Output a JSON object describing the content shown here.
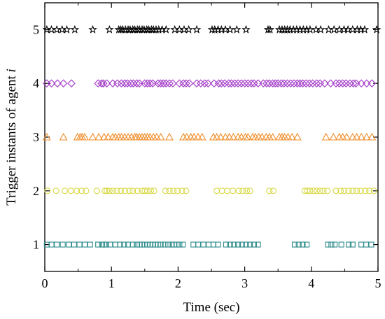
{
  "chart_data": {
    "type": "scatter",
    "title": "",
    "xlabel": "Time (sec)",
    "ylabel_text": "Trigger instants of agent ",
    "ylabel_var": "i",
    "xlim": [
      0,
      5
    ],
    "ylim": [
      0.5,
      5.5
    ],
    "xticks": [
      "0",
      "1",
      "2",
      "3",
      "4",
      "5"
    ],
    "yticks": [
      "1",
      "2",
      "3",
      "4",
      "5"
    ],
    "grid": false,
    "series": [
      {
        "agent": 1,
        "marker": "square",
        "color": "#2E8B8B",
        "x": [
          0.03,
          0.1,
          0.18,
          0.27,
          0.36,
          0.44,
          0.52,
          0.6,
          0.68,
          0.8,
          0.86,
          0.89,
          0.92,
          0.98,
          1.06,
          1.13,
          1.19,
          1.25,
          1.32,
          1.38,
          1.42,
          1.46,
          1.5,
          1.54,
          1.58,
          1.62,
          1.66,
          1.7,
          1.74,
          1.8,
          1.85,
          1.9,
          1.94,
          1.98,
          2.02,
          2.07,
          2.23,
          2.3,
          2.38,
          2.46,
          2.53,
          2.6,
          2.72,
          2.78,
          2.84,
          2.9,
          2.96,
          3.02,
          3.08,
          3.14,
          3.2,
          3.75,
          3.81,
          3.87,
          3.93,
          4.25,
          4.3,
          4.35,
          4.45,
          4.56,
          4.62,
          4.75,
          4.82,
          4.9
        ]
      },
      {
        "agent": 2,
        "marker": "circle",
        "color": "#D8D845",
        "x": [
          0.04,
          0.17,
          0.3,
          0.39,
          0.48,
          0.55,
          0.62,
          0.78,
          0.9,
          0.93,
          0.97,
          1.02,
          1.08,
          1.14,
          1.2,
          1.27,
          1.32,
          1.39,
          1.46,
          1.5,
          1.54,
          1.59,
          1.64,
          1.81,
          1.87,
          1.93,
          1.99,
          2.06,
          2.12,
          2.58,
          2.66,
          2.74,
          2.82,
          2.91,
          2.97,
          3.03,
          3.08,
          3.37,
          3.43,
          3.9,
          3.94,
          3.98,
          4.03,
          4.08,
          4.13,
          4.18,
          4.24,
          4.37,
          4.44,
          4.49,
          4.56,
          4.62,
          4.68,
          4.74,
          4.81,
          4.87,
          4.94
        ]
      },
      {
        "agent": 3,
        "marker": "triangle",
        "color": "#F28C28",
        "x": [
          0.03,
          0.28,
          0.49,
          0.53,
          0.56,
          0.6,
          0.72,
          0.81,
          0.89,
          0.95,
          1.02,
          1.06,
          1.11,
          1.15,
          1.2,
          1.25,
          1.3,
          1.35,
          1.38,
          1.42,
          1.46,
          1.5,
          1.54,
          1.58,
          1.63,
          1.68,
          1.74,
          1.87,
          2.08,
          2.13,
          2.19,
          2.24,
          2.3,
          2.36,
          2.53,
          2.58,
          2.64,
          2.71,
          2.77,
          2.83,
          2.9,
          2.95,
          3.01,
          3.05,
          3.12,
          3.16,
          3.21,
          3.26,
          3.32,
          3.37,
          3.42,
          3.52,
          3.56,
          3.6,
          3.65,
          3.71,
          3.79,
          4.22,
          4.33,
          4.42,
          4.47,
          4.53,
          4.62,
          4.68,
          4.75,
          4.83,
          4.91
        ]
      },
      {
        "agent": 4,
        "marker": "diamond",
        "color": "#A43CC8",
        "x": [
          0.03,
          0.1,
          0.19,
          0.28,
          0.4,
          0.8,
          0.85,
          0.88,
          0.93,
          1.02,
          1.09,
          1.15,
          1.2,
          1.24,
          1.29,
          1.33,
          1.38,
          1.42,
          1.5,
          1.54,
          1.58,
          1.62,
          1.7,
          1.74,
          1.78,
          1.82,
          1.87,
          1.92,
          2.02,
          2.08,
          2.12,
          2.17,
          2.28,
          2.34,
          2.4,
          2.45,
          2.54,
          2.61,
          2.65,
          2.7,
          2.76,
          2.8,
          2.85,
          2.9,
          2.95,
          3.0,
          3.05,
          3.1,
          3.14,
          3.2,
          3.28,
          3.33,
          3.37,
          3.42,
          3.46,
          3.5,
          3.55,
          3.59,
          3.64,
          3.69,
          3.74,
          3.79,
          3.83,
          3.87,
          3.92,
          3.97,
          4.02,
          4.08,
          4.13,
          4.2,
          4.29,
          4.37,
          4.42,
          4.47,
          4.52,
          4.58,
          4.63,
          4.67,
          4.75,
          4.83,
          4.91
        ]
      },
      {
        "agent": 5,
        "marker": "star",
        "color": "#000000",
        "x": [
          0.03,
          0.1,
          0.18,
          0.26,
          0.33,
          0.45,
          0.72,
          0.97,
          1.11,
          1.14,
          1.17,
          1.21,
          1.25,
          1.28,
          1.32,
          1.35,
          1.39,
          1.42,
          1.46,
          1.49,
          1.53,
          1.56,
          1.6,
          1.63,
          1.67,
          1.71,
          1.76,
          1.82,
          1.95,
          2.02,
          2.09,
          2.16,
          2.28,
          2.51,
          2.55,
          2.6,
          2.65,
          2.71,
          2.78,
          2.88,
          3.02,
          3.35,
          3.38,
          3.52,
          3.56,
          3.6,
          3.64,
          3.68,
          3.73,
          3.78,
          3.83,
          3.88,
          3.93,
          3.98,
          4.07,
          4.14,
          4.26,
          4.34,
          4.42,
          4.49,
          4.55,
          4.62,
          4.69,
          4.74,
          4.8,
          4.98
        ]
      }
    ]
  }
}
